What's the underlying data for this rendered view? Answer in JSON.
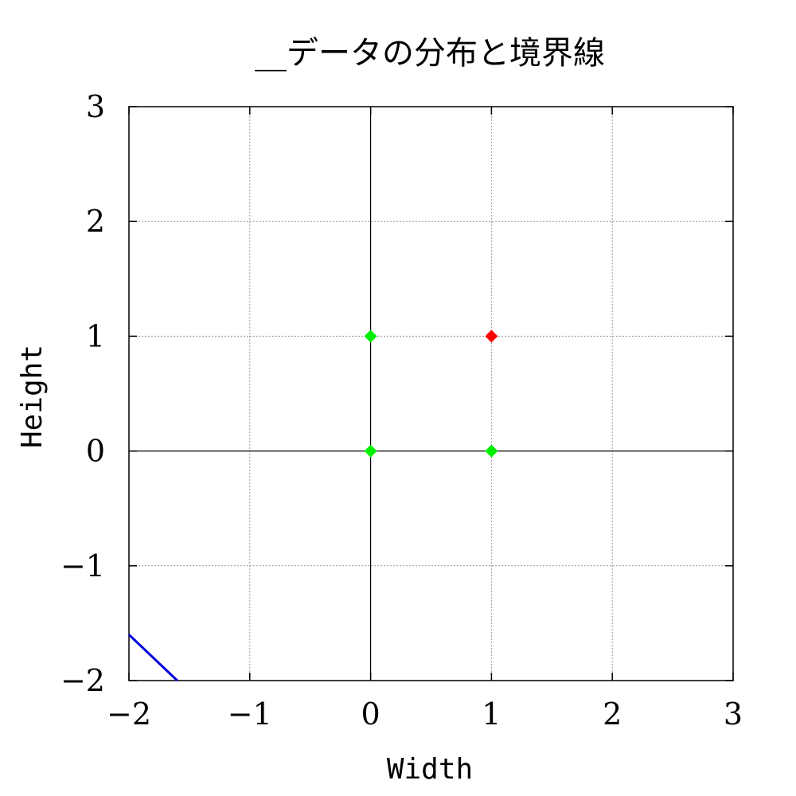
{
  "chart_data": {
    "type": "scatter",
    "title": "__データの分布と境界線",
    "xlabel": "Width",
    "ylabel": "Height",
    "xlim": [
      -2,
      3
    ],
    "ylim": [
      -2,
      3
    ],
    "x_ticks": [
      "−2",
      "−1",
      "0",
      "1",
      "2",
      "3"
    ],
    "y_ticks": [
      "−2",
      "−1",
      "0",
      "1",
      "2",
      "3"
    ],
    "x_tick_values": [
      -2,
      -1,
      0,
      1,
      2,
      3
    ],
    "y_tick_values": [
      -2,
      -1,
      0,
      1,
      2,
      3
    ],
    "grid": true,
    "points": [
      {
        "x": 0,
        "y": 1,
        "color": "#00ee00"
      },
      {
        "x": 1,
        "y": 1,
        "color": "#ff0000"
      },
      {
        "x": 0,
        "y": 0,
        "color": "#00ee00"
      },
      {
        "x": 1,
        "y": 0,
        "color": "#00ee00"
      }
    ],
    "boundary_line": {
      "x": [
        -2.0,
        -1.6
      ],
      "y": [
        -1.6,
        -2.0
      ],
      "color": "#0000dd"
    }
  }
}
